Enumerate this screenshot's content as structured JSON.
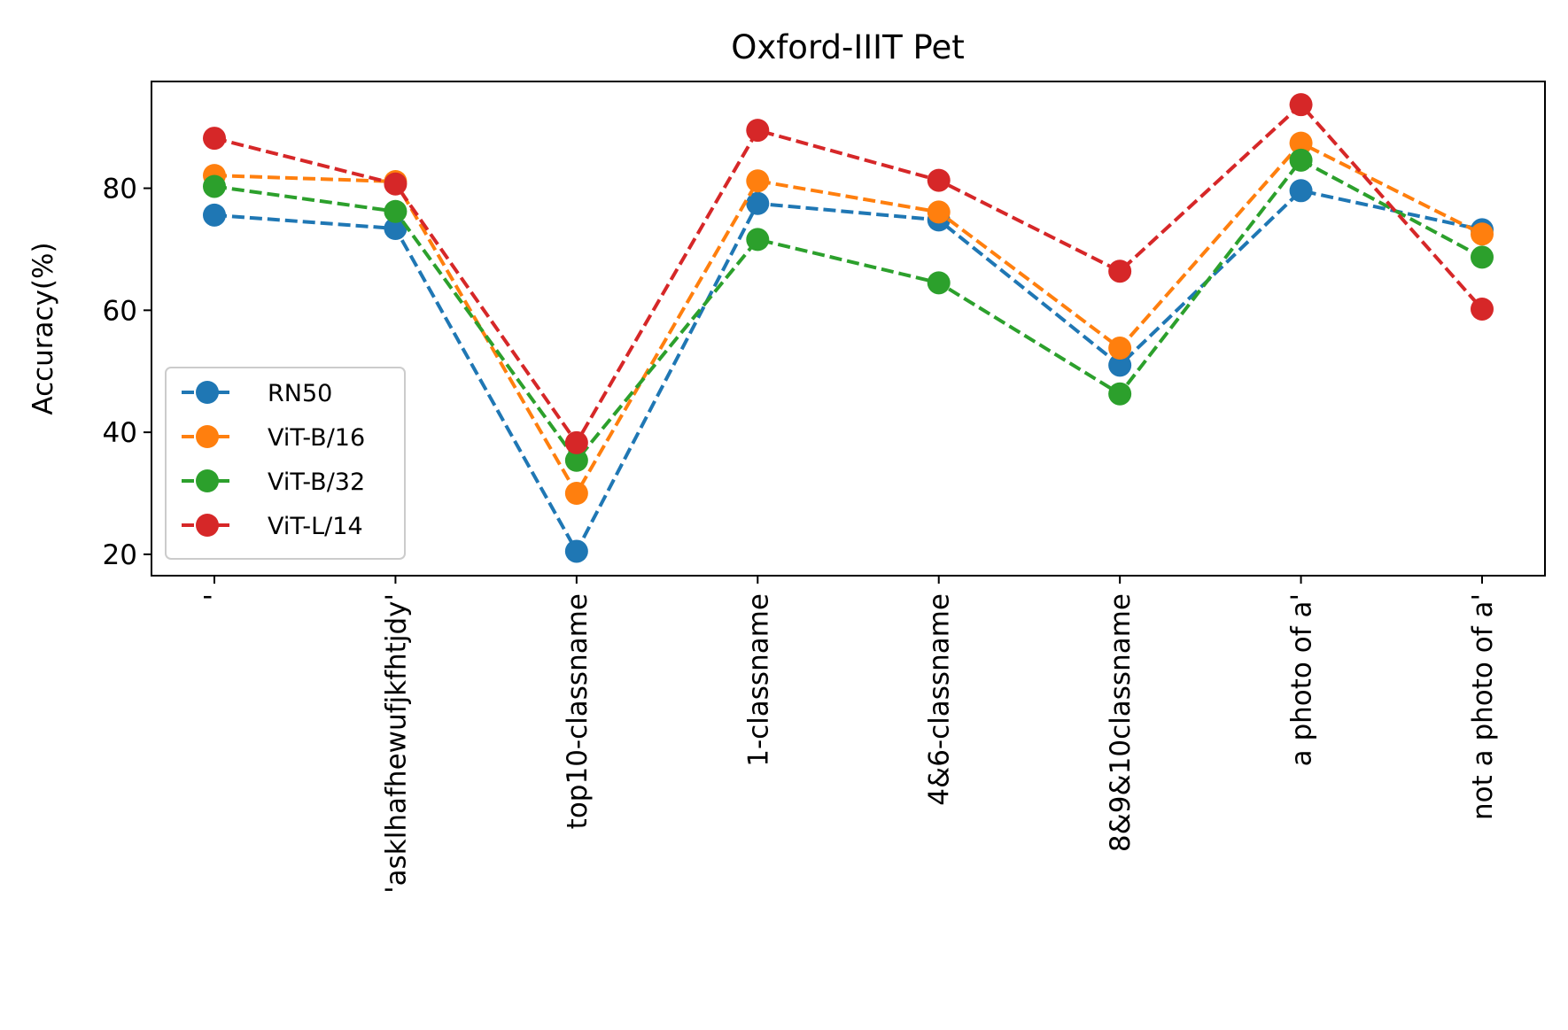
{
  "chart_data": {
    "type": "line",
    "title": "Oxford-IIIT Pet",
    "xlabel": "",
    "ylabel": "Accuracy(%)",
    "categories": [
      "'",
      "'asklhafhewufjkfhtjdy'",
      "top10-classname",
      "1-classname",
      "4&6-classname",
      "8&9&10classname",
      "a photo of a'",
      "not a photo of a'"
    ],
    "ylim": [
      16.5,
      97.5
    ],
    "yticks": [
      20,
      40,
      60,
      80
    ],
    "grid": false,
    "legend_position": "lower-left",
    "series": [
      {
        "name": "RN50",
        "color": "#1f77b4",
        "values": [
          75.6,
          73.4,
          20.5,
          77.5,
          74.8,
          51.0,
          79.6,
          73.2
        ]
      },
      {
        "name": "ViT-B/16",
        "color": "#ff7f0e",
        "values": [
          82.1,
          81.1,
          30.0,
          81.2,
          76.1,
          53.8,
          87.4,
          72.5
        ]
      },
      {
        "name": "ViT-B/32",
        "color": "#2ca02c",
        "values": [
          80.3,
          76.2,
          35.4,
          71.6,
          64.5,
          46.3,
          84.6,
          68.7
        ]
      },
      {
        "name": "ViT-L/14",
        "color": "#d62728",
        "values": [
          88.2,
          80.7,
          38.3,
          89.5,
          81.3,
          66.4,
          93.7,
          60.2
        ]
      }
    ]
  }
}
